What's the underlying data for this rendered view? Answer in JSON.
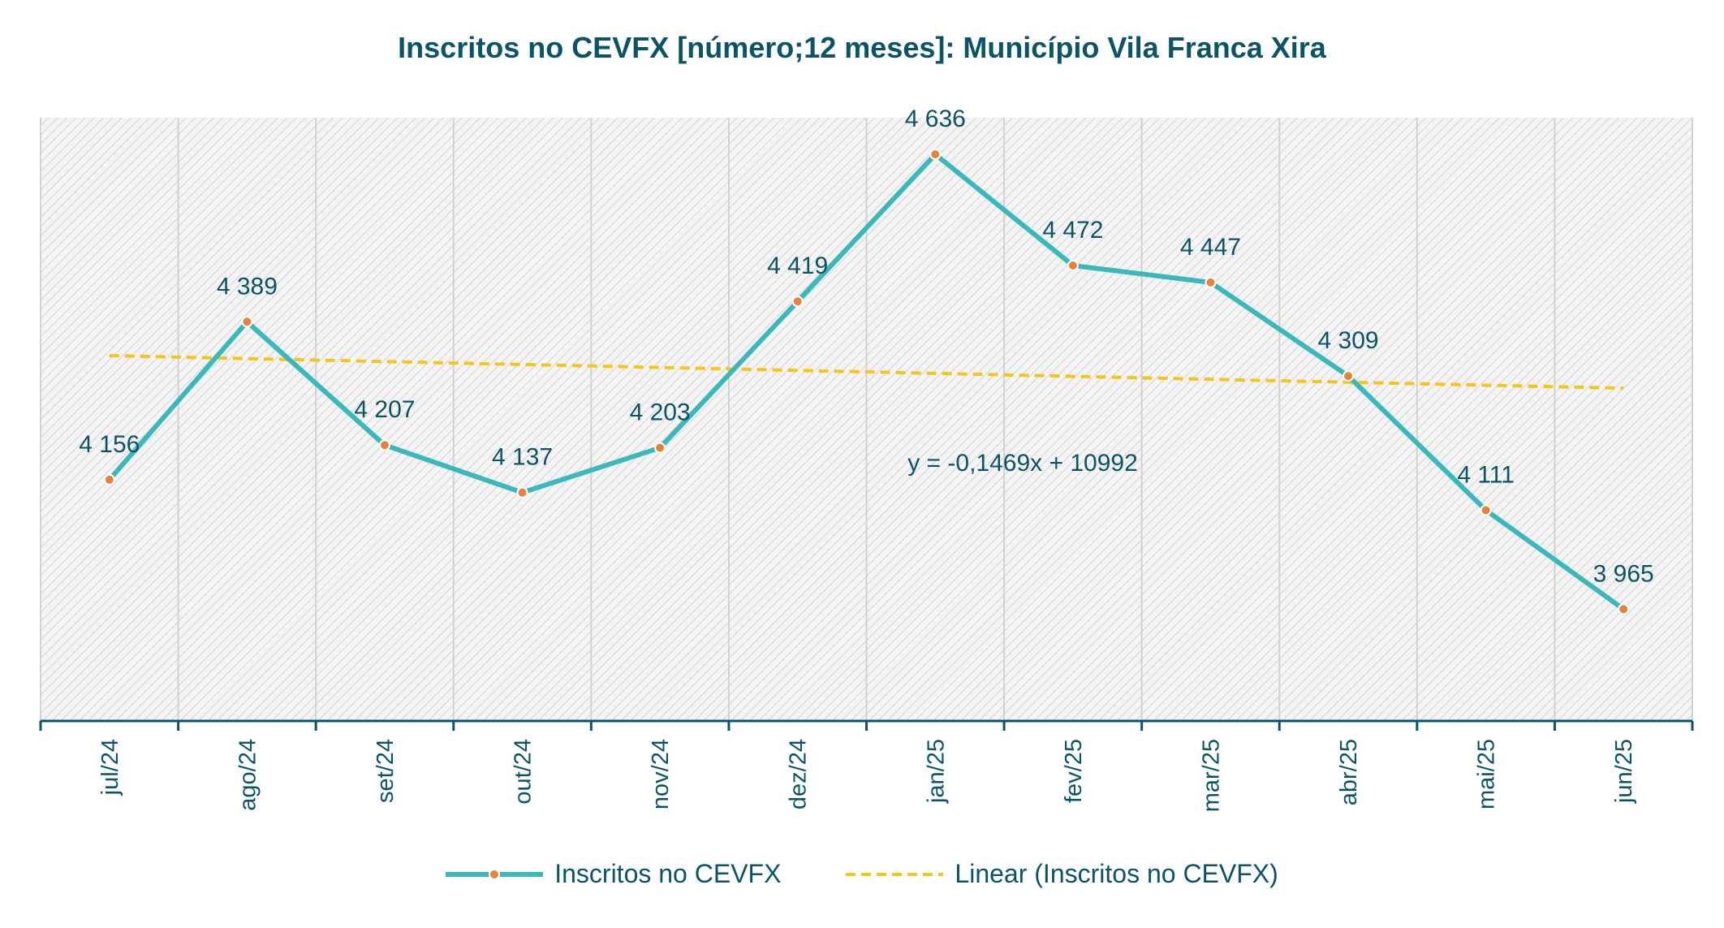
{
  "chart_data": {
    "type": "line",
    "title": "Inscritos no CEVFX [número;12 meses]: Município Vila Franca Xira",
    "xlabel": "",
    "ylabel": "",
    "categories": [
      "jul/24",
      "ago/24",
      "set/24",
      "out/24",
      "nov/24",
      "dez/24",
      "jan/25",
      "fev/25",
      "mar/25",
      "abr/25",
      "mai/25",
      "jun/25"
    ],
    "series": [
      {
        "name": "Inscritos no CEVFX",
        "values": [
          4156,
          4389,
          4207,
          4137,
          4203,
          4419,
          4636,
          4472,
          4447,
          4309,
          4111,
          3965
        ],
        "labels": [
          "4 156",
          "4 389",
          "4 207",
          "4 137",
          "4 203",
          "4 419",
          "4 636",
          "4 472",
          "4 447",
          "4 309",
          "4 111",
          "3 965"
        ],
        "color": "#3bb8bb",
        "marker_color": "#e8823a"
      }
    ],
    "trendline": {
      "name": "Linear (Inscritos no CEVFX)",
      "equation": "y = -0,1469x + 10992",
      "start_value": 4339,
      "end_value": 4291,
      "color": "#f5c518"
    },
    "ylim": [
      3800,
      4690
    ],
    "grid": true,
    "legend_position": "bottom"
  }
}
